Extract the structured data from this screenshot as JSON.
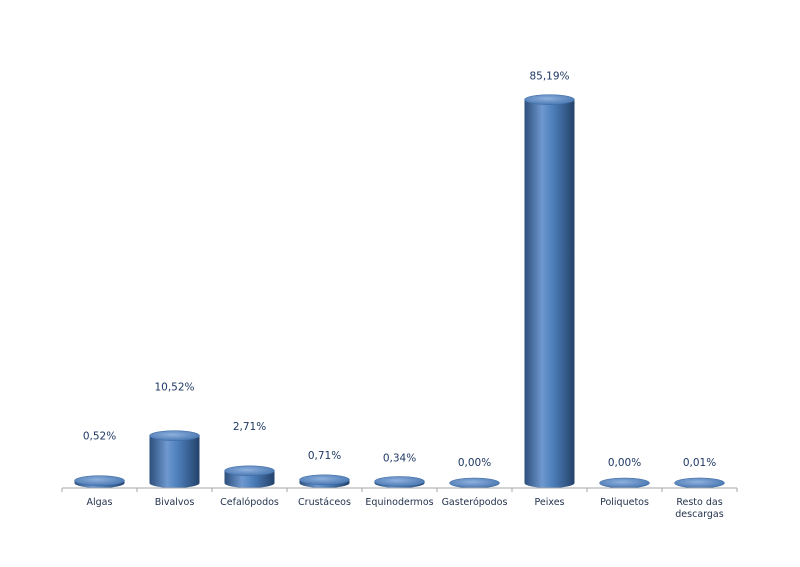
{
  "chart_data": {
    "type": "bar",
    "style": "3d-cylinder",
    "categories": [
      "Algas",
      "Bivalvos",
      "Cefalópodos",
      "Crustáceos",
      "Equinodermos",
      "Gasterópodos",
      "Peixes",
      "Poliquetos",
      "Resto das descargas"
    ],
    "values": [
      0.52,
      10.52,
      2.71,
      0.71,
      0.34,
      0.0,
      85.19,
      0.0,
      0.01
    ],
    "data_labels": [
      "0,52%",
      "10,52%",
      "2,71%",
      "0,71%",
      "0,34%",
      "0,00%",
      "85,19%",
      "0,00%",
      "0,01%"
    ],
    "title": "",
    "xlabel": "",
    "ylabel": "",
    "ylim": [
      0,
      100
    ],
    "grid": false,
    "legend": "none",
    "colors": {
      "bar": "#4f81bd",
      "bar_dark": "#2c4f7c",
      "bar_light": "#8fb1de",
      "label": "#1f3864",
      "axis": "#a6a6a6"
    }
  }
}
